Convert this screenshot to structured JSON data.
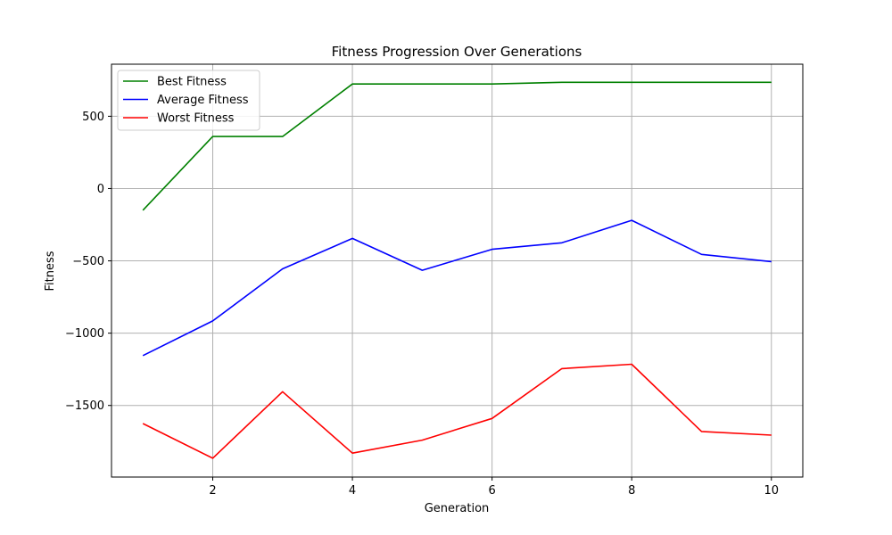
{
  "chart_data": {
    "type": "line",
    "title": "Fitness Progression Over Generations",
    "xlabel": "Generation",
    "ylabel": "Fitness",
    "x": [
      1,
      2,
      3,
      4,
      5,
      6,
      7,
      8,
      9,
      10
    ],
    "xlim": [
      0.55,
      10.45
    ],
    "ylim": [
      -1995,
      860
    ],
    "xticks": [
      2,
      4,
      6,
      8,
      10
    ],
    "yticks": [
      500,
      0,
      -500,
      -1000,
      -1500
    ],
    "ytick_labels": [
      "500",
      "0",
      "−500",
      "−1000",
      "−1500"
    ],
    "xtick_labels": [
      "2",
      "4",
      "6",
      "8",
      "10"
    ],
    "grid": true,
    "legend_position": "upper-left",
    "series": [
      {
        "name": "Best Fitness",
        "color": "#008000",
        "values": [
          -150,
          360,
          360,
          723,
          723,
          723,
          735,
          735,
          735,
          735
        ]
      },
      {
        "name": "Average Fitness",
        "color": "#0000ff",
        "values": [
          -1155,
          -915,
          -555,
          -345,
          -565,
          -420,
          -375,
          -220,
          -455,
          -505
        ]
      },
      {
        "name": "Worst Fitness",
        "color": "#ff0000",
        "values": [
          -1625,
          -1865,
          -1405,
          -1830,
          -1740,
          -1590,
          -1245,
          -1215,
          -1680,
          -1705
        ]
      }
    ]
  }
}
